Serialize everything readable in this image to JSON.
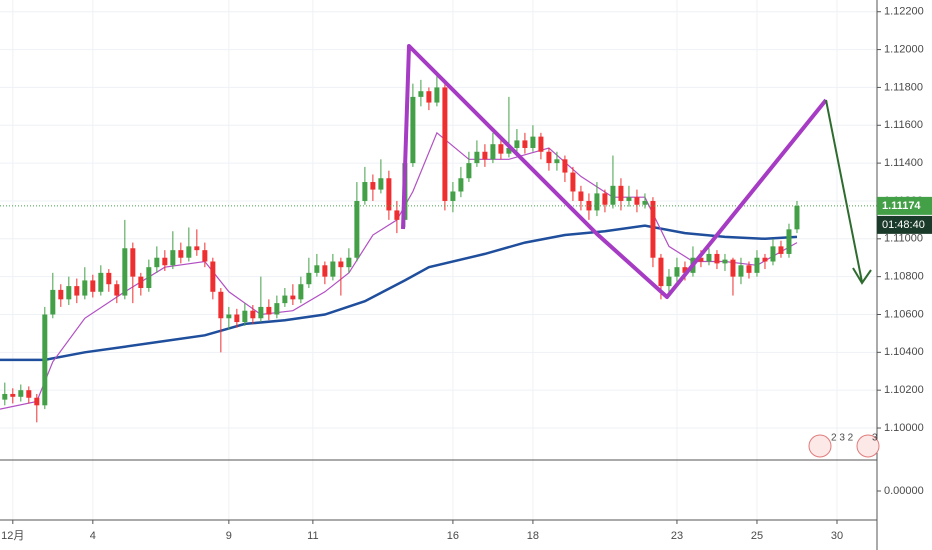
{
  "chart_data": {
    "type": "candlestick",
    "xlim": [
      -0.6,
      109
    ],
    "xticks": [
      {
        "value": 1,
        "label": "12月"
      },
      {
        "value": 11,
        "label": "4"
      },
      {
        "value": 28,
        "label": "9"
      },
      {
        "value": 38.5,
        "label": "11"
      },
      {
        "value": 56,
        "label": "16"
      },
      {
        "value": 66,
        "label": "18"
      },
      {
        "value": 84,
        "label": "23"
      },
      {
        "value": 94,
        "label": "25"
      },
      {
        "value": 104,
        "label": "30"
      }
    ],
    "ylim": [
      1.09831,
      1.12262
    ],
    "yticks": [
      {
        "value": 1.1,
        "label": "1.10000"
      },
      {
        "value": 1.102,
        "label": "1.10200"
      },
      {
        "value": 1.104,
        "label": "1.10400"
      },
      {
        "value": 1.106,
        "label": "1.10600"
      },
      {
        "value": 1.108,
        "label": "1.10800"
      },
      {
        "value": 1.11,
        "label": "1.11000"
      },
      {
        "value": 1.112,
        "label": "1.11200"
      },
      {
        "value": 1.114,
        "label": "1.11400"
      },
      {
        "value": 1.116,
        "label": "1.11600"
      },
      {
        "value": 1.118,
        "label": "1.11800"
      },
      {
        "value": 1.12,
        "label": "1.12000"
      },
      {
        "value": 1.122,
        "label": "1.12200"
      }
    ],
    "grid": true,
    "up_color": "#43a047",
    "down_color": "#ef2f2f",
    "open": [
      1.1015,
      1.1018,
      1.10165,
      1.102,
      1.1016,
      1.1012,
      1.106,
      1.1073,
      1.1068,
      1.1075,
      1.107,
      1.1078,
      1.1072,
      1.1082,
      1.1076,
      1.107,
      1.1095,
      1.108,
      1.1074,
      1.1085,
      1.109,
      1.1086,
      1.1094,
      1.109,
      1.1096,
      1.1094,
      1.1088,
      1.1072,
      1.1058,
      1.106,
      1.1056,
      1.1062,
      1.1058,
      1.1064,
      1.106,
      1.1066,
      1.107,
      1.1068,
      1.1076,
      1.1082,
      1.1086,
      1.108,
      1.1088,
      1.1085,
      1.109,
      1.112,
      1.113,
      1.1126,
      1.1132,
      1.1115,
      1.111,
      1.114,
      1.1175,
      1.1178,
      1.1172,
      1.118,
      1.112,
      1.1125,
      1.1132,
      1.114,
      1.1146,
      1.1142,
      1.115,
      1.1145,
      1.1148,
      1.1152,
      1.1148,
      1.1154,
      1.1146,
      1.114,
      1.1142,
      1.1135,
      1.1125,
      1.112,
      1.1115,
      1.1124,
      1.1118,
      1.1128,
      1.112,
      1.1122,
      1.1118,
      1.112,
      1.109,
      1.1075,
      1.108,
      1.1085,
      1.1082,
      1.109,
      1.1088,
      1.1092,
      1.1087,
      1.1089,
      1.108,
      1.1086,
      1.1082,
      1.109,
      1.1088,
      1.1096,
      1.1092,
      1.1105
    ],
    "high": [
      1.1024,
      1.1021,
      1.1023,
      1.1022,
      1.1018,
      1.1064,
      1.1082,
      1.1076,
      1.108,
      1.1079,
      1.1085,
      1.1081,
      1.1086,
      1.1084,
      1.1078,
      1.111,
      1.1098,
      1.1082,
      1.1089,
      1.1096,
      1.1094,
      1.1104,
      1.1098,
      1.1106,
      1.1105,
      1.1098,
      1.109,
      1.1074,
      1.1064,
      1.1063,
      1.1066,
      1.1065,
      1.108,
      1.1068,
      1.107,
      1.1074,
      1.1076,
      1.108,
      1.109,
      1.1092,
      1.1088,
      1.1092,
      1.109,
      1.1095,
      1.113,
      1.1138,
      1.1134,
      1.1142,
      1.1136,
      1.112,
      1.1148,
      1.1182,
      1.1184,
      1.118,
      1.1186,
      1.1182,
      1.113,
      1.1138,
      1.1146,
      1.1152,
      1.115,
      1.1156,
      1.1153,
      1.1175,
      1.1158,
      1.1156,
      1.116,
      1.1156,
      1.1148,
      1.1146,
      1.1144,
      1.1138,
      1.1128,
      1.1124,
      1.113,
      1.1126,
      1.1144,
      1.1132,
      1.1128,
      1.1126,
      1.1124,
      1.1122,
      1.1092,
      1.1084,
      1.109,
      1.1088,
      1.1096,
      1.1094,
      1.1095,
      1.1094,
      1.1092,
      1.109,
      1.109,
      1.1088,
      1.1094,
      1.1092,
      1.11,
      1.1099,
      1.1108,
      1.112
    ],
    "low": [
      1.1012,
      1.1013,
      1.1014,
      1.1013,
      1.1003,
      1.101,
      1.1058,
      1.1064,
      1.1065,
      1.1066,
      1.1068,
      1.1069,
      1.107,
      1.1072,
      1.1066,
      1.1068,
      1.1066,
      1.107,
      1.1072,
      1.1082,
      1.1083,
      1.1084,
      1.1087,
      1.1088,
      1.1091,
      1.1085,
      1.1068,
      1.104,
      1.1052,
      1.1053,
      1.1054,
      1.1055,
      1.1056,
      1.1057,
      1.1058,
      1.1064,
      1.1065,
      1.1066,
      1.1074,
      1.108,
      1.1076,
      1.1078,
      1.107,
      1.1082,
      1.1088,
      1.1118,
      1.112,
      1.1124,
      1.111,
      1.1103,
      1.1106,
      1.1138,
      1.117,
      1.1168,
      1.117,
      1.1115,
      1.1114,
      1.1122,
      1.113,
      1.1138,
      1.1138,
      1.114,
      1.1142,
      1.1143,
      1.1144,
      1.1145,
      1.1146,
      1.1142,
      1.1136,
      1.1136,
      1.113,
      1.112,
      1.1115,
      1.111,
      1.1112,
      1.1114,
      1.1116,
      1.1115,
      1.1117,
      1.1114,
      1.1116,
      1.1085,
      1.1068,
      1.107,
      1.1077,
      1.1078,
      1.108,
      1.1085,
      1.1086,
      1.1084,
      1.1083,
      1.107,
      1.1076,
      1.1079,
      1.108,
      1.1084,
      1.1086,
      1.109,
      1.109,
      1.1103
    ],
    "close": [
      1.1018,
      1.10165,
      1.102,
      1.1016,
      1.1012,
      1.106,
      1.1073,
      1.1068,
      1.1075,
      1.107,
      1.1078,
      1.1072,
      1.1082,
      1.1076,
      1.107,
      1.1095,
      1.108,
      1.1074,
      1.1085,
      1.109,
      1.1086,
      1.1094,
      1.109,
      1.1096,
      1.1094,
      1.1088,
      1.1072,
      1.1058,
      1.106,
      1.1056,
      1.1062,
      1.1058,
      1.1064,
      1.106,
      1.1066,
      1.107,
      1.1068,
      1.1076,
      1.1082,
      1.1086,
      1.108,
      1.1088,
      1.1085,
      1.109,
      1.112,
      1.113,
      1.1126,
      1.1132,
      1.1115,
      1.111,
      1.114,
      1.1175,
      1.1178,
      1.1172,
      1.118,
      1.112,
      1.1125,
      1.1132,
      1.114,
      1.1146,
      1.1142,
      1.115,
      1.1145,
      1.1148,
      1.1152,
      1.1148,
      1.1154,
      1.1146,
      1.114,
      1.1142,
      1.1135,
      1.1125,
      1.112,
      1.1115,
      1.1124,
      1.1118,
      1.1128,
      1.112,
      1.1122,
      1.1118,
      1.112,
      1.109,
      1.1075,
      1.108,
      1.1085,
      1.1082,
      1.109,
      1.1088,
      1.1092,
      1.1087,
      1.1089,
      1.108,
      1.1086,
      1.1082,
      1.109,
      1.1088,
      1.1096,
      1.1092,
      1.1105,
      1.11174
    ],
    "lines": [
      {
        "color": "#1f4e9c",
        "x": [
          -0.6,
          5,
          10,
          15,
          20,
          25,
          30,
          35,
          40,
          45,
          50,
          53,
          60,
          65,
          70,
          75,
          80,
          85,
          90,
          95,
          99
        ],
        "values": [
          1.1036,
          1.1036,
          1.104,
          1.1043,
          1.1046,
          1.1049,
          1.1055,
          1.1057,
          1.106,
          1.1067,
          1.1078,
          1.1085,
          1.1092,
          1.1098,
          1.1102,
          1.1104,
          1.1107,
          1.1103,
          1.1101,
          1.11,
          1.1101
        ]
      },
      {
        "color": "#b24fc4",
        "x": [
          -0.6,
          4,
          6,
          10,
          15,
          20,
          25,
          28,
          32,
          36,
          40,
          43,
          46,
          49,
          51,
          54,
          58,
          63,
          68,
          72,
          76,
          80,
          83,
          86,
          90,
          94,
          99
        ],
        "values": [
          1.101,
          1.1014,
          1.1035,
          1.1058,
          1.1072,
          1.1085,
          1.1088,
          1.1072,
          1.106,
          1.1062,
          1.1072,
          1.1082,
          1.1102,
          1.111,
          1.1125,
          1.1156,
          1.1142,
          1.1142,
          1.1148,
          1.1133,
          1.1122,
          1.1122,
          1.1096,
          1.1088,
          1.1088,
          1.1086,
          1.1098
        ]
      }
    ],
    "last_price": {
      "value": 1.11174,
      "label": "1.11174"
    },
    "countdown": "01:48:40",
    "events": [
      "2 3 2",
      "3"
    ],
    "lower_pane": {
      "yticks": [
        {
          "value": 0,
          "label": "0.00000"
        }
      ]
    }
  }
}
